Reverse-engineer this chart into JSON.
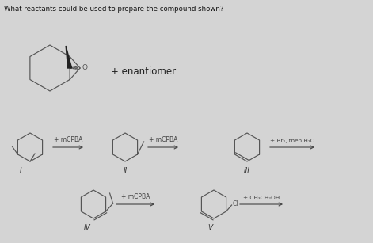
{
  "title": "What reactants could be used to prepare the compound shown?",
  "bg_color": "#d4d4d4",
  "mol_color": "#555555",
  "dark_color": "#222222",
  "enantiomer": "+ enantiomer",
  "reagent_1": "+ mCPBA",
  "reagent_2": "+ mCPBA",
  "reagent_3": "+ Br₂, then H₂O",
  "reagent_4": "+ mCPBA",
  "reagent_5": "+ CH₃CH₂OH",
  "labels": [
    "I",
    "II",
    "III",
    "IV",
    "V"
  ],
  "figsize": [
    4.71,
    3.07
  ],
  "dpi": 100
}
